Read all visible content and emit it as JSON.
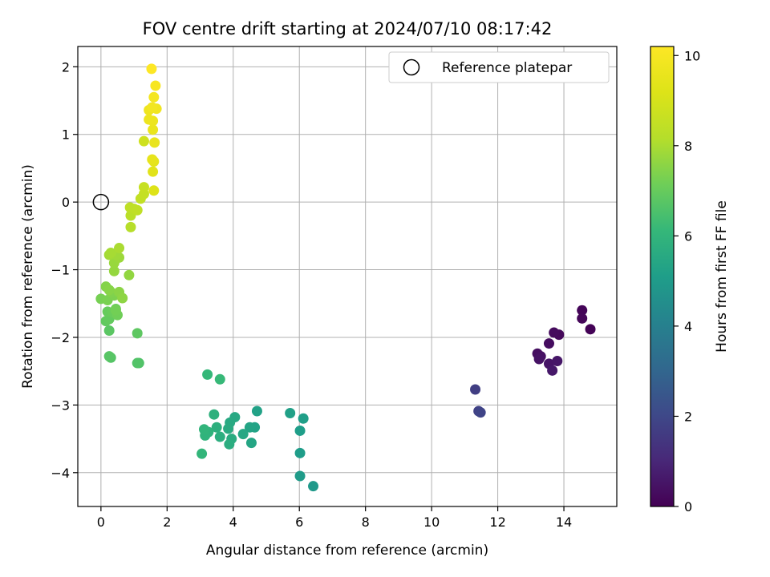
{
  "chart_data": {
    "type": "scatter",
    "title": "FOV centre drift starting at 2024/07/10 08:17:42",
    "xlabel": "Angular distance from reference (arcmin)",
    "ylabel": "Rotation from reference (arcmin)",
    "xlim": [
      -0.7,
      15.6
    ],
    "ylim": [
      -4.5,
      2.3
    ],
    "xticks": [
      "0",
      "2",
      "4",
      "6",
      "8",
      "10",
      "12",
      "14"
    ],
    "yticks": [
      "−4",
      "−3",
      "−2",
      "−1",
      "0",
      "1",
      "2"
    ],
    "grid": true,
    "legend": {
      "position": "top-right",
      "entries": [
        "Reference platepar"
      ]
    },
    "reference_point": {
      "x": 0,
      "y": 0
    },
    "colorbar": {
      "label": "Hours from first FF file",
      "colormap": "viridis",
      "range": [
        0,
        10.2
      ],
      "ticks": [
        "0",
        "2",
        "4",
        "6",
        "8",
        "10"
      ]
    },
    "series": [
      {
        "points": [
          {
            "x": 14.8,
            "y": -1.88,
            "c": 0.05
          },
          {
            "x": 14.55,
            "y": -1.6,
            "c": 0.1
          },
          {
            "x": 14.55,
            "y": -1.72,
            "c": 0.15
          },
          {
            "x": 13.85,
            "y": -1.96,
            "c": 0.2
          },
          {
            "x": 13.7,
            "y": -1.93,
            "c": 0.25
          },
          {
            "x": 13.55,
            "y": -2.09,
            "c": 0.3
          },
          {
            "x": 13.2,
            "y": -2.24,
            "c": 0.35
          },
          {
            "x": 13.3,
            "y": -2.28,
            "c": 0.4
          },
          {
            "x": 13.25,
            "y": -2.32,
            "c": 0.45
          },
          {
            "x": 13.55,
            "y": -2.39,
            "c": 0.5
          },
          {
            "x": 13.8,
            "y": -2.35,
            "c": 0.55
          },
          {
            "x": 13.65,
            "y": -2.49,
            "c": 0.6
          },
          {
            "x": 11.32,
            "y": -2.77,
            "c": 1.7
          },
          {
            "x": 11.42,
            "y": -3.09,
            "c": 1.8
          },
          {
            "x": 11.48,
            "y": -3.11,
            "c": 1.9
          },
          {
            "x": 6.42,
            "y": -4.2,
            "c": 4.9
          },
          {
            "x": 6.02,
            "y": -4.05,
            "c": 5.0
          },
          {
            "x": 6.02,
            "y": -3.71,
            "c": 5.05
          },
          {
            "x": 6.02,
            "y": -3.38,
            "c": 5.1
          },
          {
            "x": 6.12,
            "y": -3.2,
            "c": 5.15
          },
          {
            "x": 5.72,
            "y": -3.12,
            "c": 5.2
          },
          {
            "x": 4.72,
            "y": -3.09,
            "c": 5.25
          },
          {
            "x": 4.65,
            "y": -3.33,
            "c": 5.3
          },
          {
            "x": 4.5,
            "y": -3.33,
            "c": 5.35
          },
          {
            "x": 4.55,
            "y": -3.56,
            "c": 5.4
          },
          {
            "x": 4.3,
            "y": -3.43,
            "c": 5.45
          },
          {
            "x": 4.05,
            "y": -3.18,
            "c": 5.5
          },
          {
            "x": 3.9,
            "y": -3.26,
            "c": 5.55
          },
          {
            "x": 3.85,
            "y": -3.35,
            "c": 5.6
          },
          {
            "x": 3.95,
            "y": -3.5,
            "c": 5.65
          },
          {
            "x": 3.88,
            "y": -3.58,
            "c": 5.7
          },
          {
            "x": 3.6,
            "y": -3.47,
            "c": 5.75
          },
          {
            "x": 3.5,
            "y": -3.33,
            "c": 5.8
          },
          {
            "x": 3.42,
            "y": -3.14,
            "c": 5.85
          },
          {
            "x": 3.25,
            "y": -3.4,
            "c": 5.9
          },
          {
            "x": 3.15,
            "y": -3.45,
            "c": 5.95
          },
          {
            "x": 3.12,
            "y": -3.36,
            "c": 6.0
          },
          {
            "x": 3.05,
            "y": -3.72,
            "c": 6.05
          },
          {
            "x": 3.22,
            "y": -2.55,
            "c": 6.1
          },
          {
            "x": 3.6,
            "y": -2.62,
            "c": 6.15
          },
          {
            "x": 1.15,
            "y": -2.38,
            "c": 6.6
          },
          {
            "x": 1.1,
            "y": -2.38,
            "c": 6.65
          },
          {
            "x": 0.3,
            "y": -2.3,
            "c": 6.7
          },
          {
            "x": 0.25,
            "y": -2.28,
            "c": 6.75
          },
          {
            "x": 0.25,
            "y": -1.9,
            "c": 6.8
          },
          {
            "x": 1.1,
            "y": -1.94,
            "c": 6.85
          },
          {
            "x": 0.15,
            "y": -1.76,
            "c": 6.9
          },
          {
            "x": 0.25,
            "y": -1.73,
            "c": 6.95
          },
          {
            "x": 0.2,
            "y": -1.62,
            "c": 7.0
          },
          {
            "x": 0.35,
            "y": -1.63,
            "c": 7.05
          },
          {
            "x": 0.45,
            "y": -1.58,
            "c": 7.1
          },
          {
            "x": 0.5,
            "y": -1.67,
            "c": 7.15
          },
          {
            "x": 0.45,
            "y": -1.6,
            "c": 7.2
          },
          {
            "x": 0.0,
            "y": -1.43,
            "c": 7.25
          },
          {
            "x": 0.2,
            "y": -1.45,
            "c": 7.3
          },
          {
            "x": 0.4,
            "y": -1.38,
            "c": 7.35
          },
          {
            "x": 0.3,
            "y": -1.33,
            "c": 7.4
          },
          {
            "x": 0.15,
            "y": -1.25,
            "c": 7.45
          },
          {
            "x": 0.25,
            "y": -1.3,
            "c": 7.5
          },
          {
            "x": 0.55,
            "y": -1.33,
            "c": 7.55
          },
          {
            "x": 0.65,
            "y": -1.42,
            "c": 7.6
          },
          {
            "x": 0.85,
            "y": -1.08,
            "c": 7.65
          },
          {
            "x": 0.4,
            "y": -1.02,
            "c": 7.7
          },
          {
            "x": 0.4,
            "y": -0.9,
            "c": 7.75
          },
          {
            "x": 0.55,
            "y": -0.82,
            "c": 7.8
          },
          {
            "x": 0.45,
            "y": -0.78,
            "c": 7.85
          },
          {
            "x": 0.25,
            "y": -0.78,
            "c": 7.9
          },
          {
            "x": 0.3,
            "y": -0.75,
            "c": 7.95
          },
          {
            "x": 0.55,
            "y": -0.68,
            "c": 8.0
          },
          {
            "x": 0.9,
            "y": -0.37,
            "c": 8.2
          },
          {
            "x": 0.9,
            "y": -0.2,
            "c": 8.3
          },
          {
            "x": 1.0,
            "y": -0.1,
            "c": 8.35
          },
          {
            "x": 0.88,
            "y": -0.08,
            "c": 8.4
          },
          {
            "x": 1.1,
            "y": -0.12,
            "c": 8.45
          },
          {
            "x": 1.2,
            "y": 0.05,
            "c": 8.5
          },
          {
            "x": 1.3,
            "y": 0.12,
            "c": 8.55
          },
          {
            "x": 1.3,
            "y": 0.22,
            "c": 8.6
          },
          {
            "x": 1.3,
            "y": 0.9,
            "c": 8.8
          },
          {
            "x": 1.6,
            "y": 0.17,
            "c": 9.2
          },
          {
            "x": 1.57,
            "y": 0.45,
            "c": 9.3
          },
          {
            "x": 1.6,
            "y": 0.6,
            "c": 9.4
          },
          {
            "x": 1.55,
            "y": 0.63,
            "c": 9.5
          },
          {
            "x": 1.62,
            "y": 0.88,
            "c": 9.55
          },
          {
            "x": 1.57,
            "y": 1.07,
            "c": 9.6
          },
          {
            "x": 1.57,
            "y": 1.2,
            "c": 9.65
          },
          {
            "x": 1.45,
            "y": 1.22,
            "c": 9.7
          },
          {
            "x": 1.45,
            "y": 1.36,
            "c": 9.75
          },
          {
            "x": 1.68,
            "y": 1.38,
            "c": 9.8
          },
          {
            "x": 1.55,
            "y": 1.4,
            "c": 9.85
          },
          {
            "x": 1.6,
            "y": 1.55,
            "c": 9.9
          },
          {
            "x": 1.65,
            "y": 1.72,
            "c": 10.0
          },
          {
            "x": 1.53,
            "y": 1.97,
            "c": 10.2
          }
        ]
      }
    ]
  }
}
